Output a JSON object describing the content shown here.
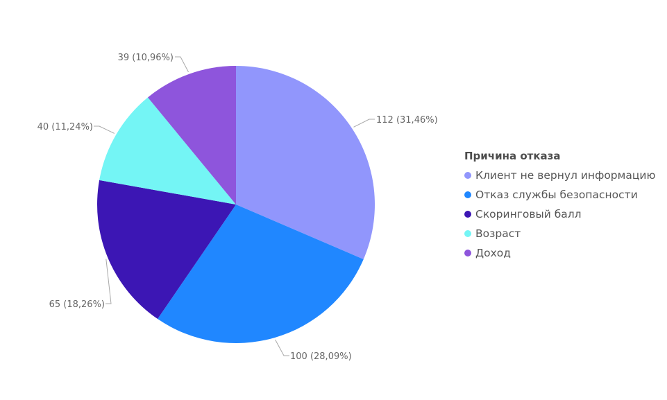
{
  "chart_data": {
    "type": "pie",
    "legend_title": "Причина отказа",
    "legend_position": "right",
    "slices": [
      {
        "name": "Клиент не вернул информацию",
        "value": 112,
        "percent": "31,46%",
        "label": "112 (31,46%)",
        "color": "#9196fc"
      },
      {
        "name": "Отказ службы безопасности",
        "value": 100,
        "percent": "28,09%",
        "label": "100 (28,09%)",
        "color": "#2087ff"
      },
      {
        "name": "Скоринговый балл",
        "value": 65,
        "percent": "18,26%",
        "label": "65 (18,26%)",
        "color": "#3c16b4"
      },
      {
        "name": "Возраст",
        "value": 40,
        "percent": "11,24%",
        "label": "40 (11,24%)",
        "color": "#74f5f5"
      },
      {
        "name": "Доход",
        "value": 39,
        "percent": "10,96%",
        "label": "39 (10,96%)",
        "color": "#8e55dc"
      }
    ]
  }
}
